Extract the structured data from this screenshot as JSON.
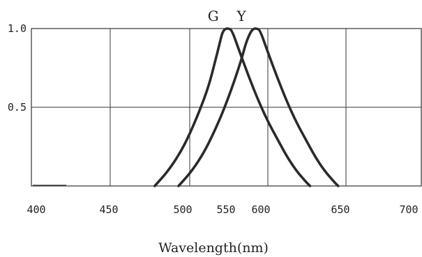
{
  "chart_data": {
    "type": "line",
    "xlabel": "Wavelength(nm)",
    "ylabel": "",
    "x_tick_labels": [
      "400",
      "450",
      "500",
      "550",
      "600",
      "650",
      "700"
    ],
    "y_ticks": [
      {
        "value": 1.0,
        "label": "1.0"
      },
      {
        "value": 0.5,
        "label": "0.5"
      }
    ],
    "ylim": [
      0,
      1.0
    ],
    "grid": true,
    "series": [
      {
        "name": "G",
        "color": "#2a2a2a",
        "x": [
          478,
          486,
          494,
          500,
          506,
          512,
          516,
          519,
          521,
          523,
          525,
          527,
          532,
          538,
          544,
          550,
          556,
          562,
          568,
          574,
          577
        ],
        "y": [
          0.0,
          0.09,
          0.21,
          0.33,
          0.47,
          0.63,
          0.78,
          0.9,
          0.98,
          1.0,
          1.0,
          0.99,
          0.85,
          0.69,
          0.54,
          0.41,
          0.3,
          0.19,
          0.1,
          0.03,
          0.0
        ]
      },
      {
        "name": "Y",
        "color": "#2a2a2a",
        "x": [
          493,
          501,
          509,
          516,
          522,
          528,
          533,
          536,
          539,
          541,
          543,
          545,
          550,
          556,
          562,
          568,
          574,
          580,
          586,
          592,
          595
        ],
        "y": [
          0.0,
          0.09,
          0.21,
          0.35,
          0.49,
          0.65,
          0.8,
          0.91,
          0.98,
          1.0,
          1.0,
          0.99,
          0.85,
          0.69,
          0.54,
          0.41,
          0.3,
          0.19,
          0.1,
          0.03,
          0.0
        ]
      }
    ]
  }
}
